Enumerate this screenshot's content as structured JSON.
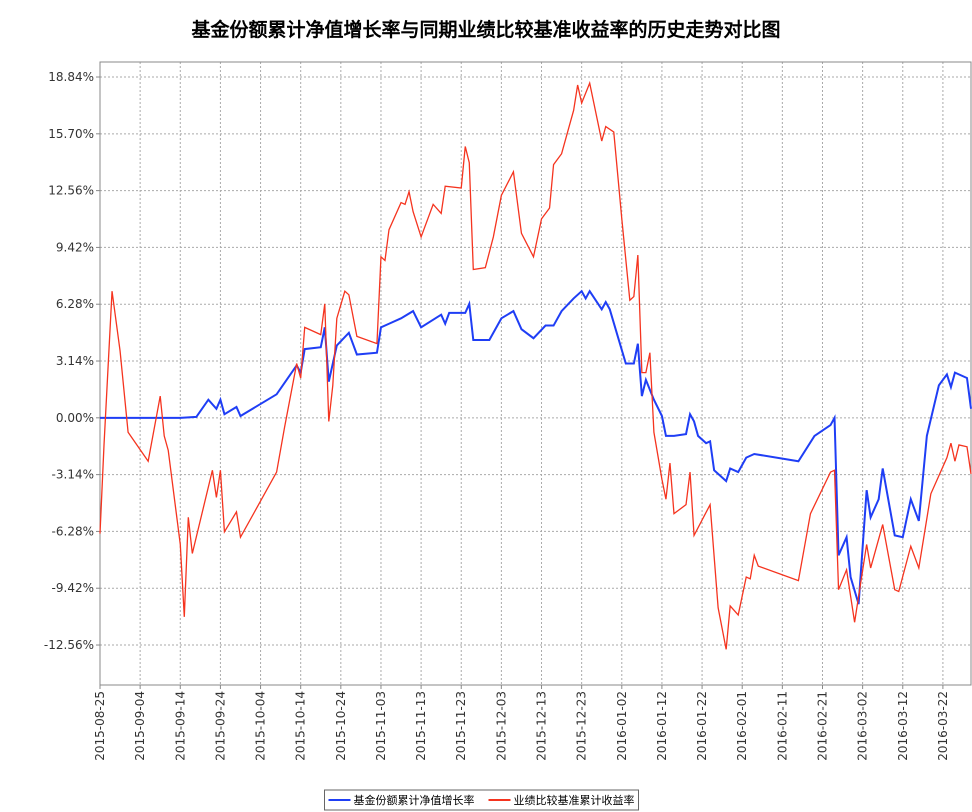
{
  "chart_data": {
    "type": "line",
    "title": "基金份额累计净值增长率与同期业绩比较基准收益率的历史走势对比图",
    "xlim": [
      "2015-08-25",
      "2016-03-29"
    ],
    "xticks": [
      "2015-08-25",
      "2015-09-04",
      "2015-09-14",
      "2015-09-24",
      "2015-10-04",
      "2015-10-14",
      "2015-10-24",
      "2015-11-03",
      "2015-11-13",
      "2015-11-23",
      "2015-12-03",
      "2015-12-13",
      "2015-12-23",
      "2016-01-02",
      "2016-01-12",
      "2016-01-22",
      "2016-02-01",
      "2016-02-11",
      "2016-02-21",
      "2016-03-02",
      "2016-03-12",
      "2016-03-22"
    ],
    "ylim": [
      -14.77,
      19.67
    ],
    "yticks": [
      {
        "value": -12.56,
        "label": "-12.56%"
      },
      {
        "value": -9.42,
        "label": "-9.42%"
      },
      {
        "value": -6.28,
        "label": "-6.28%"
      },
      {
        "value": -3.14,
        "label": "-3.14%"
      },
      {
        "value": 0,
        "label": "0.00%"
      },
      {
        "value": 3.14,
        "label": "3.14%"
      },
      {
        "value": 6.28,
        "label": "6.28%"
      },
      {
        "value": 9.42,
        "label": "9.42%"
      },
      {
        "value": 12.56,
        "label": "12.56%"
      },
      {
        "value": 15.7,
        "label": "15.70%"
      },
      {
        "value": 18.84,
        "label": "18.84%"
      }
    ],
    "grid": true,
    "legend": "bottom",
    "series": [
      {
        "name": "基金份额累计净值增长率",
        "color": "#1f3ef5",
        "x": [
          "2015-08-25",
          "2015-09-14",
          "2015-09-18",
          "2015-09-21",
          "2015-09-23",
          "2015-09-24",
          "2015-09-25",
          "2015-09-28",
          "2015-09-29",
          "2015-10-08",
          "2015-10-13",
          "2015-10-14",
          "2015-10-15",
          "2015-10-19",
          "2015-10-20",
          "2015-10-21",
          "2015-10-23",
          "2015-10-26",
          "2015-10-28",
          "2015-11-02",
          "2015-11-03",
          "2015-11-05",
          "2015-11-08",
          "2015-11-11",
          "2015-11-13",
          "2015-11-18",
          "2015-11-19",
          "2015-11-20",
          "2015-11-24",
          "2015-11-25",
          "2015-11-26",
          "2015-11-30",
          "2015-12-03",
          "2015-12-06",
          "2015-12-08",
          "2015-12-11",
          "2015-12-14",
          "2015-12-16",
          "2015-12-18",
          "2015-12-21",
          "2015-12-23",
          "2015-12-24",
          "2015-12-25",
          "2015-12-28",
          "2015-12-29",
          "2015-12-30",
          "2016-01-01",
          "2016-01-03",
          "2016-01-05",
          "2016-01-06",
          "2016-01-07",
          "2016-01-08",
          "2016-01-10",
          "2016-01-12",
          "2016-01-13",
          "2016-01-15",
          "2016-01-18",
          "2016-01-19",
          "2016-01-20",
          "2016-01-21",
          "2016-01-23",
          "2016-01-24",
          "2016-01-25",
          "2016-01-28",
          "2016-01-29",
          "2016-01-31",
          "2016-02-02",
          "2016-02-04",
          "2016-02-15",
          "2016-02-19",
          "2016-02-23",
          "2016-02-24",
          "2016-02-25",
          "2016-02-27",
          "2016-02-28",
          "2016-03-01",
          "2016-03-03",
          "2016-03-04",
          "2016-03-06",
          "2016-03-07",
          "2016-03-10",
          "2016-03-12",
          "2016-03-14",
          "2016-03-16",
          "2016-03-18",
          "2016-03-21",
          "2016-03-23",
          "2016-03-24",
          "2016-03-25",
          "2016-03-28",
          "2016-03-29"
        ],
        "values": [
          0,
          0,
          0.05,
          1.0,
          0.5,
          1.0,
          0.2,
          0.6,
          0.1,
          1.3,
          2.9,
          2.5,
          3.8,
          3.9,
          5.0,
          2.0,
          4.0,
          4.7,
          3.5,
          3.6,
          5.0,
          5.2,
          5.5,
          5.9,
          5.0,
          5.7,
          5.2,
          5.8,
          5.8,
          6.3,
          4.3,
          4.3,
          5.5,
          5.9,
          4.9,
          4.4,
          5.1,
          5.1,
          5.9,
          6.6,
          7.0,
          6.6,
          7.0,
          6.0,
          6.4,
          6.0,
          4.5,
          3.0,
          3.0,
          4.1,
          1.2,
          2.1,
          1.0,
          0.1,
          -1.0,
          -1.0,
          -0.9,
          0.2,
          -0.2,
          -1.0,
          -1.4,
          -1.3,
          -2.9,
          -3.5,
          -2.8,
          -3.0,
          -2.2,
          -2.0,
          -2.4,
          -1.0,
          -0.4,
          0.0,
          -7.6,
          -6.6,
          -8.8,
          -10.3,
          -4.0,
          -5.5,
          -4.5,
          -2.8,
          -6.5,
          -6.6,
          -4.5,
          -5.7,
          -1.0,
          1.8,
          2.4,
          1.7,
          2.5,
          2.2,
          0.5
        ]
      },
      {
        "name": "业绩比较基准累计收益率",
        "color": "#f5341f",
        "x": [
          "2015-08-25",
          "2015-08-26",
          "2015-08-28",
          "2015-08-30",
          "2015-09-01",
          "2015-09-06",
          "2015-09-09",
          "2015-09-10",
          "2015-09-11",
          "2015-09-14",
          "2015-09-15",
          "2015-09-16",
          "2015-09-17",
          "2015-09-22",
          "2015-09-23",
          "2015-09-24",
          "2015-09-25",
          "2015-09-28",
          "2015-09-29",
          "2015-10-08",
          "2015-10-10",
          "2015-10-13",
          "2015-10-14",
          "2015-10-15",
          "2015-10-19",
          "2015-10-20",
          "2015-10-21",
          "2015-10-22",
          "2015-10-23",
          "2015-10-25",
          "2015-10-26",
          "2015-10-28",
          "2015-11-02",
          "2015-11-03",
          "2015-11-04",
          "2015-11-05",
          "2015-11-08",
          "2015-11-09",
          "2015-11-10",
          "2015-11-11",
          "2015-11-13",
          "2015-11-16",
          "2015-11-18",
          "2015-11-19",
          "2015-11-23",
          "2015-11-24",
          "2015-11-25",
          "2015-11-26",
          "2015-11-29",
          "2015-12-01",
          "2015-12-03",
          "2015-12-06",
          "2015-12-08",
          "2015-12-11",
          "2015-12-13",
          "2015-12-15",
          "2015-12-16",
          "2015-12-18",
          "2015-12-21",
          "2015-12-22",
          "2015-12-23",
          "2015-12-25",
          "2015-12-28",
          "2015-12-29",
          "2015-12-31",
          "2016-01-02",
          "2016-01-04",
          "2016-01-05",
          "2016-01-06",
          "2016-01-07",
          "2016-01-08",
          "2016-01-09",
          "2016-01-10",
          "2016-01-12",
          "2016-01-13",
          "2016-01-14",
          "2016-01-15",
          "2016-01-18",
          "2016-01-19",
          "2016-01-20",
          "2016-01-24",
          "2016-01-26",
          "2016-01-28",
          "2016-01-29",
          "2016-01-31",
          "2016-02-02",
          "2016-02-03",
          "2016-02-04",
          "2016-02-05",
          "2016-02-15",
          "2016-02-18",
          "2016-02-23",
          "2016-02-24",
          "2016-02-25",
          "2016-02-27",
          "2016-02-29",
          "2016-03-03",
          "2016-03-04",
          "2016-03-07",
          "2016-03-10",
          "2016-03-11",
          "2016-03-14",
          "2016-03-16",
          "2016-03-19",
          "2016-03-23",
          "2016-03-24",
          "2016-03-25",
          "2016-03-26",
          "2016-03-28",
          "2016-03-29"
        ],
        "values": [
          -6.4,
          -1.5,
          7.0,
          3.7,
          -0.8,
          -2.4,
          1.2,
          -1.0,
          -1.8,
          -7.0,
          -11.0,
          -5.5,
          -7.5,
          -2.9,
          -4.4,
          -2.9,
          -6.3,
          -5.2,
          -6.6,
          -3.0,
          -0.5,
          3.0,
          2.2,
          5.0,
          4.6,
          6.3,
          -0.2,
          1.8,
          5.5,
          7.0,
          6.8,
          4.5,
          4.1,
          8.9,
          8.7,
          10.4,
          11.9,
          11.8,
          12.5,
          11.4,
          10.0,
          11.8,
          11.3,
          12.8,
          12.7,
          15.0,
          14.1,
          8.2,
          8.3,
          10.0,
          12.3,
          13.6,
          10.2,
          8.9,
          11.0,
          11.6,
          14.0,
          14.6,
          17.0,
          18.4,
          17.4,
          18.5,
          15.3,
          16.1,
          15.8,
          11.0,
          6.5,
          6.7,
          9.0,
          2.5,
          2.5,
          3.6,
          -0.8,
          -3.4,
          -4.5,
          -2.5,
          -5.3,
          -4.8,
          -3.0,
          -6.5,
          -4.8,
          -10.5,
          -12.8,
          -10.4,
          -10.9,
          -8.8,
          -8.9,
          -7.6,
          -8.2,
          -9.0,
          -5.3,
          -3.0,
          -2.9,
          -9.5,
          -8.4,
          -11.3,
          -7.0,
          -8.3,
          -5.9,
          -9.5,
          -9.6,
          -7.1,
          -8.3,
          -4.2,
          -2.2,
          -1.4,
          -2.4,
          -1.5,
          -1.6,
          -3.1
        ]
      }
    ]
  }
}
